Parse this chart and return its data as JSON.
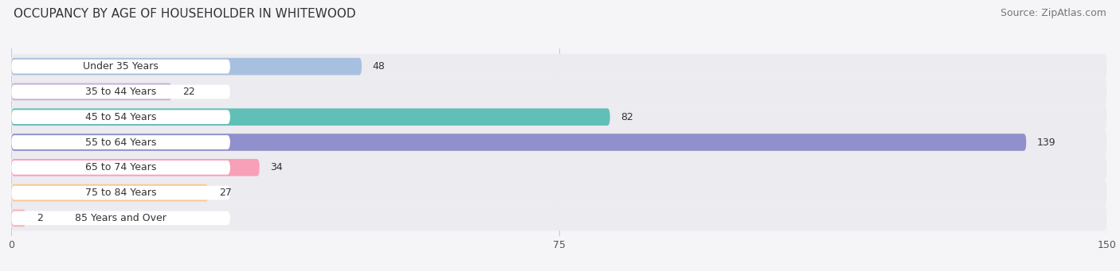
{
  "title": "OCCUPANCY BY AGE OF HOUSEHOLDER IN WHITEWOOD",
  "source": "Source: ZipAtlas.com",
  "categories": [
    "Under 35 Years",
    "35 to 44 Years",
    "45 to 54 Years",
    "55 to 64 Years",
    "65 to 74 Years",
    "75 to 84 Years",
    "85 Years and Over"
  ],
  "values": [
    48,
    22,
    82,
    139,
    34,
    27,
    2
  ],
  "bar_colors": [
    "#a8c0e0",
    "#c8b0d8",
    "#60c0b8",
    "#9090cc",
    "#f8a0b8",
    "#f8c890",
    "#f8b0b0"
  ],
  "xlim": [
    0,
    150
  ],
  "xticks": [
    0,
    75,
    150
  ],
  "title_fontsize": 11,
  "source_fontsize": 9,
  "label_fontsize": 9,
  "value_fontsize": 9,
  "bar_height": 0.68,
  "row_bg_color": "#ebebf0",
  "row_gap_color": "#f5f5f8",
  "white_label_bg": "#ffffff",
  "background_color": "#f5f5f8"
}
